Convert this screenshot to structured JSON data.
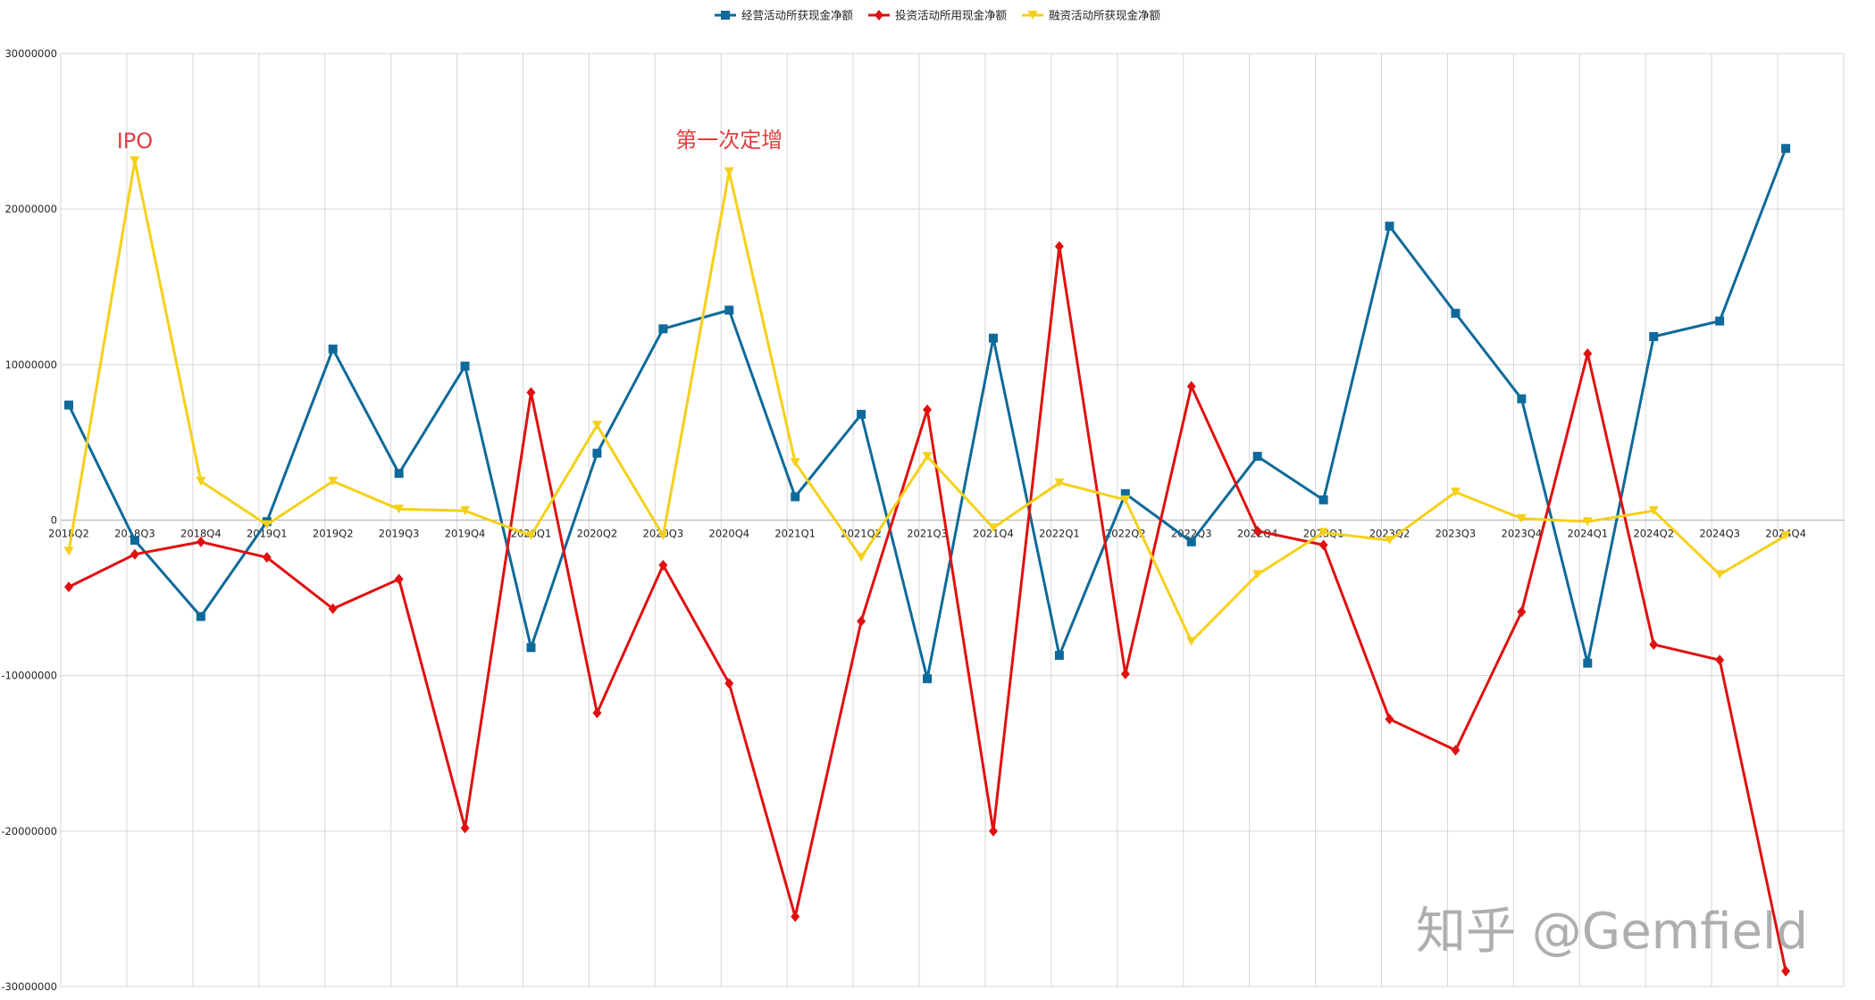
{
  "chart_data": {
    "type": "line",
    "categories": [
      "2018Q2",
      "2018Q3",
      "2018Q4",
      "2019Q1",
      "2019Q2",
      "2019Q3",
      "2019Q4",
      "2020Q1",
      "2020Q2",
      "2020Q3",
      "2020Q4",
      "2021Q1",
      "2021Q2",
      "2021Q3",
      "2021Q4",
      "2022Q1",
      "2022Q2",
      "2022Q3",
      "2022Q4",
      "2023Q1",
      "2023Q2",
      "2023Q3",
      "2023Q4",
      "2024Q1",
      "2024Q2",
      "2024Q3",
      "2024Q4"
    ],
    "ylim": [
      -30000000,
      30000000
    ],
    "yticks": [
      "30000000",
      "20000000",
      "10000000",
      "0",
      "-10000000",
      "-20000000",
      "-30000000"
    ],
    "grid": true,
    "legend_position": "top",
    "series": [
      {
        "name": "经营活动所获现金净额",
        "color": "#0e6a9a",
        "marker": "square",
        "values": [
          7400000,
          -1300000,
          -6200000,
          -100000,
          11000000,
          3000000,
          9900000,
          -8200000,
          4300000,
          12300000,
          13500000,
          1500000,
          6800000,
          -10200000,
          11700000,
          -8700000,
          1700000,
          -1400000,
          4100000,
          1300000,
          18900000,
          13300000,
          7800000,
          -9200000,
          11800000,
          12800000,
          23900000
        ]
      },
      {
        "name": "投资活动所用现金净额",
        "color": "#e01010",
        "marker": "diamond",
        "values": [
          -4300000,
          -2200000,
          -1400000,
          -2400000,
          -5700000,
          -3800000,
          -19800000,
          8200000,
          -12400000,
          -2900000,
          -10500000,
          -25500000,
          -6500000,
          7100000,
          -20000000,
          17600000,
          -9900000,
          8600000,
          -700000,
          -1600000,
          -12800000,
          -14800000,
          -5900000,
          10700000,
          -8000000,
          -9000000,
          -29000000
        ]
      },
      {
        "name": "融资活动所获现金净额",
        "color": "#f5d01a",
        "marker": "triangle-down",
        "values": [
          -2000000,
          23100000,
          2500000,
          -300000,
          2500000,
          700000,
          600000,
          -1000000,
          6100000,
          -1000000,
          22400000,
          3700000,
          -2400000,
          4100000,
          -500000,
          2400000,
          1300000,
          -7800000,
          -3500000,
          -800000,
          -1300000,
          1800000,
          100000,
          -100000,
          600000,
          -3500000,
          -1000000
        ]
      }
    ],
    "annotations": [
      {
        "text": "IPO",
        "x": "2018Q3",
        "color": "#e04040"
      },
      {
        "text": "第一次定增",
        "x": "2020Q4",
        "color": "#e04040"
      }
    ]
  },
  "watermark": "知乎 @Gemfield"
}
